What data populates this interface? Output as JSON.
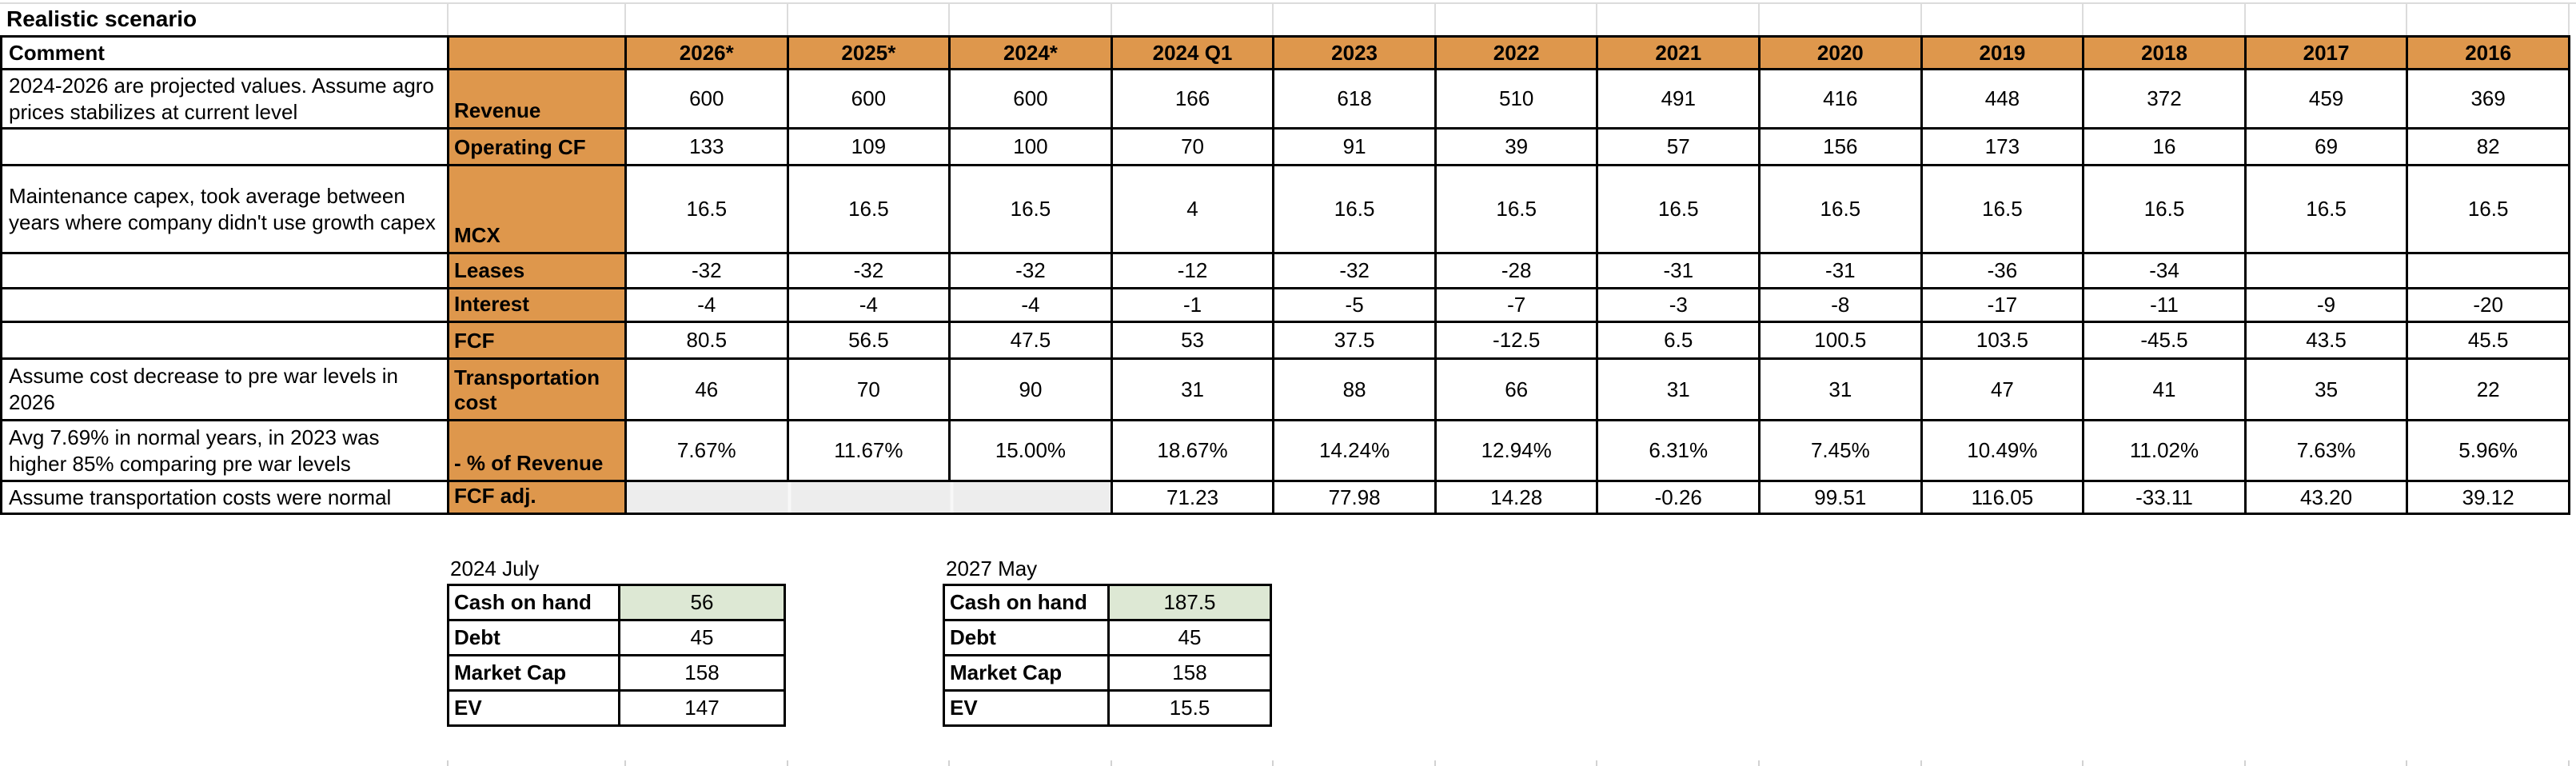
{
  "title": "Realistic scenario",
  "main_table": {
    "comment_header": "Comment",
    "columns": [
      "2026*",
      "2025*",
      "2024*",
      "2024 Q1",
      "2023",
      "2022",
      "2021",
      "2020",
      "2019",
      "2018",
      "2017",
      "2016"
    ],
    "rows": [
      {
        "comment": "2024-2026 are projected values. Assume agro prices stabilizes at current level",
        "label": "Revenue",
        "values": [
          "600",
          "600",
          "600",
          "166",
          "618",
          "510",
          "491",
          "416",
          "448",
          "372",
          "459",
          "369"
        ]
      },
      {
        "comment": "",
        "label": "Operating CF",
        "values": [
          "133",
          "109",
          "100",
          "70",
          "91",
          "39",
          "57",
          "156",
          "173",
          "16",
          "69",
          "82"
        ]
      },
      {
        "comment": "Maintenance capex, took average between years where company didn't use growth capex",
        "label": "MCX",
        "values": [
          "16.5",
          "16.5",
          "16.5",
          "4",
          "16.5",
          "16.5",
          "16.5",
          "16.5",
          "16.5",
          "16.5",
          "16.5",
          "16.5"
        ]
      },
      {
        "comment": "",
        "label": "Leases",
        "values": [
          "-32",
          "-32",
          "-32",
          "-12",
          "-32",
          "-28",
          "-31",
          "-31",
          "-36",
          "-34",
          "",
          ""
        ]
      },
      {
        "comment": "",
        "label": "Interest",
        "values": [
          "-4",
          "-4",
          "-4",
          "-1",
          "-5",
          "-7",
          "-3",
          "-8",
          "-17",
          "-11",
          "-9",
          "-20"
        ]
      },
      {
        "comment": "",
        "label": "FCF",
        "values": [
          "80.5",
          "56.5",
          "47.5",
          "53",
          "37.5",
          "-12.5",
          "6.5",
          "100.5",
          "103.5",
          "-45.5",
          "43.5",
          "45.5"
        ]
      },
      {
        "comment": "Assume cost decrease to pre war levels in 2026",
        "label": "Transportation cost",
        "values": [
          "46",
          "70",
          "90",
          "31",
          "88",
          "66",
          "31",
          "31",
          "47",
          "41",
          "35",
          "22"
        ]
      },
      {
        "comment": "Avg 7.69% in normal years, in 2023 was higher 85% comparing pre war levels",
        "label": "- % of Revenue",
        "values": [
          "7.67%",
          "11.67%",
          "15.00%",
          "18.67%",
          "14.24%",
          "12.94%",
          "6.31%",
          "7.45%",
          "10.49%",
          "11.02%",
          "7.63%",
          "5.96%"
        ]
      },
      {
        "comment": "Assume transportation costs were normal",
        "label": "FCF adj.",
        "muted_span": 3,
        "values": [
          "",
          "",
          "",
          "71.23",
          "77.98",
          "14.28",
          "-0.26",
          "99.51",
          "116.05",
          "-33.11",
          "43.20",
          "39.12"
        ]
      }
    ]
  },
  "summary_tables": [
    {
      "title": "2024 July",
      "rows": [
        {
          "label": "Cash on hand",
          "value": "56",
          "highlight": true
        },
        {
          "label": "Debt",
          "value": "45"
        },
        {
          "label": "Market Cap",
          "value": "158"
        },
        {
          "label": "EV",
          "value": "147"
        }
      ]
    },
    {
      "title": "2027 May",
      "rows": [
        {
          "label": "Cash on hand",
          "value": "187.5",
          "highlight": true
        },
        {
          "label": "Debt",
          "value": "45"
        },
        {
          "label": "Market Cap",
          "value": "158"
        },
        {
          "label": "EV",
          "value": "15.5"
        }
      ]
    }
  ],
  "colors": {
    "header_fill": "#de974c",
    "highlight_fill": "#dde8d4",
    "muted_fill": "#ededed",
    "border": "#000000"
  }
}
